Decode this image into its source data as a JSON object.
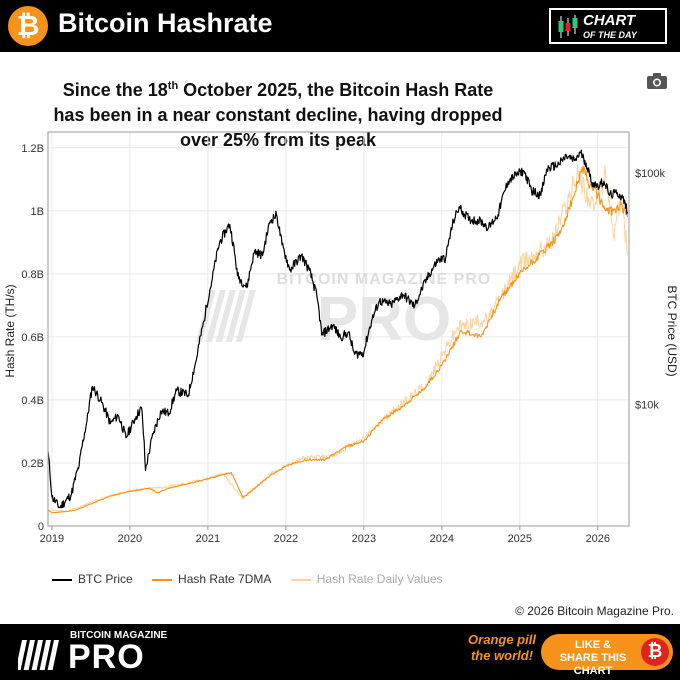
{
  "header": {
    "title": "Bitcoin Hashrate",
    "logo_glyph": "₿",
    "badge_line1": "CHART",
    "badge_line2": "OF THE DAY"
  },
  "headline": {
    "part1": "Since the 18",
    "sup": "th",
    "part2": " October 2025, the Bitcoin Hash Rate has been in a near constant decline, having dropped over 25% from its peak"
  },
  "footer": {
    "copyright": "© 2026 Bitcoin Magazine Pro.",
    "brand_small": "BITCOIN MAGAZINE",
    "brand_big": "PRO",
    "tagline": "Orange pill the world!",
    "share_label": "LIKE & SHARE THIS CHART",
    "coin_glyph": "₿"
  },
  "colors": {
    "btc_price": "#000000",
    "hash_rate_7dma": "#f7931a",
    "hash_rate_daily": "#f9d3a0"
  },
  "chart_data": {
    "type": "line",
    "watermark": "BITCOIN MAGAZINE PRO",
    "y_left_label": "Hash Rate (TH/s)",
    "y_right_label": "BTC Price (USD)",
    "y_left_ticks": [
      "0",
      "0.2B",
      "0.4B",
      "0.6B",
      "0.8B",
      "1B",
      "1.2B"
    ],
    "y_left_range": [
      0,
      1.25
    ],
    "y_right_ticks": [
      "$10k",
      "$100k"
    ],
    "y_right_scale": "log",
    "y_right_range": [
      3000,
      150000
    ],
    "x_ticks": [
      "2019",
      "2020",
      "2021",
      "2022",
      "2023",
      "2024",
      "2025",
      "2026"
    ],
    "x_range": [
      2018.95,
      2026.4
    ],
    "grid": true,
    "legend": [
      {
        "name": "BTC Price",
        "color": "#000000"
      },
      {
        "name": "Hash Rate 7DMA",
        "color": "#f7931a"
      },
      {
        "name": "Hash Rate Daily Values",
        "color": "#f9d3a0"
      }
    ],
    "series": [
      {
        "name": "BTC Price",
        "axis": "right",
        "points": [
          [
            2018.95,
            6300
          ],
          [
            2019.0,
            4000
          ],
          [
            2019.1,
            3600
          ],
          [
            2019.25,
            4100
          ],
          [
            2019.35,
            5500
          ],
          [
            2019.45,
            8500
          ],
          [
            2019.52,
            12000
          ],
          [
            2019.62,
            10500
          ],
          [
            2019.75,
            8300
          ],
          [
            2019.85,
            9000
          ],
          [
            2019.95,
            7200
          ],
          [
            2020.08,
            8900
          ],
          [
            2020.15,
            9700
          ],
          [
            2020.2,
            5200
          ],
          [
            2020.3,
            7500
          ],
          [
            2020.4,
            9400
          ],
          [
            2020.5,
            9200
          ],
          [
            2020.6,
            11500
          ],
          [
            2020.75,
            11000
          ],
          [
            2020.85,
            15500
          ],
          [
            2020.95,
            23000
          ],
          [
            2021.05,
            34000
          ],
          [
            2021.15,
            50000
          ],
          [
            2021.28,
            60000
          ],
          [
            2021.38,
            36000
          ],
          [
            2021.5,
            32000
          ],
          [
            2021.6,
            46000
          ],
          [
            2021.7,
            44000
          ],
          [
            2021.8,
            62000
          ],
          [
            2021.88,
            66000
          ],
          [
            2021.95,
            49000
          ],
          [
            2022.05,
            38000
          ],
          [
            2022.2,
            44000
          ],
          [
            2022.3,
            38000
          ],
          [
            2022.4,
            29000
          ],
          [
            2022.46,
            20000
          ],
          [
            2022.6,
            22000
          ],
          [
            2022.7,
            19500
          ],
          [
            2022.8,
            20500
          ],
          [
            2022.88,
            16500
          ],
          [
            2023.0,
            16800
          ],
          [
            2023.1,
            23000
          ],
          [
            2023.2,
            28000
          ],
          [
            2023.35,
            27000
          ],
          [
            2023.5,
            30000
          ],
          [
            2023.65,
            26500
          ],
          [
            2023.8,
            34500
          ],
          [
            2023.95,
            42000
          ],
          [
            2024.05,
            43000
          ],
          [
            2024.15,
            62000
          ],
          [
            2024.22,
            71000
          ],
          [
            2024.35,
            63000
          ],
          [
            2024.5,
            62000
          ],
          [
            2024.6,
            58000
          ],
          [
            2024.72,
            66000
          ],
          [
            2024.85,
            92000
          ],
          [
            2024.95,
            98000
          ],
          [
            2025.05,
            102000
          ],
          [
            2025.15,
            84000
          ],
          [
            2025.27,
            80000
          ],
          [
            2025.35,
            104000
          ],
          [
            2025.5,
            109000
          ],
          [
            2025.6,
            118000
          ],
          [
            2025.7,
            113000
          ],
          [
            2025.78,
            122000
          ],
          [
            2025.85,
            110000
          ],
          [
            2025.92,
            91000
          ],
          [
            2026.0,
            88000
          ],
          [
            2026.08,
            92000
          ],
          [
            2026.15,
            80000
          ],
          [
            2026.25,
            82000
          ],
          [
            2026.32,
            78000
          ],
          [
            2026.38,
            68000
          ]
        ]
      },
      {
        "name": "Hash Rate 7DMA",
        "axis": "left",
        "points": [
          [
            2018.95,
            0.05
          ],
          [
            2019.0,
            0.042
          ],
          [
            2019.15,
            0.045
          ],
          [
            2019.3,
            0.05
          ],
          [
            2019.5,
            0.07
          ],
          [
            2019.75,
            0.095
          ],
          [
            2020.0,
            0.11
          ],
          [
            2020.25,
            0.12
          ],
          [
            2020.35,
            0.105
          ],
          [
            2020.5,
            0.12
          ],
          [
            2020.75,
            0.135
          ],
          [
            2021.0,
            0.15
          ],
          [
            2021.3,
            0.17
          ],
          [
            2021.45,
            0.09
          ],
          [
            2021.6,
            0.12
          ],
          [
            2021.8,
            0.16
          ],
          [
            2022.0,
            0.19
          ],
          [
            2022.25,
            0.21
          ],
          [
            2022.5,
            0.21
          ],
          [
            2022.75,
            0.25
          ],
          [
            2023.0,
            0.27
          ],
          [
            2023.25,
            0.34
          ],
          [
            2023.5,
            0.38
          ],
          [
            2023.75,
            0.43
          ],
          [
            2024.0,
            0.51
          ],
          [
            2024.25,
            0.62
          ],
          [
            2024.5,
            0.6
          ],
          [
            2024.75,
            0.72
          ],
          [
            2025.0,
            0.8
          ],
          [
            2025.25,
            0.86
          ],
          [
            2025.5,
            0.92
          ],
          [
            2025.7,
            1.05
          ],
          [
            2025.8,
            1.14
          ],
          [
            2025.9,
            1.08
          ],
          [
            2026.0,
            1.05
          ],
          [
            2026.1,
            1.0
          ],
          [
            2026.2,
            1.0
          ],
          [
            2026.3,
            1.02
          ],
          [
            2026.38,
            0.98
          ]
        ]
      },
      {
        "name": "Hash Rate Daily Values",
        "axis": "left",
        "points": [
          [
            2018.95,
            0.05
          ],
          [
            2019.2,
            0.046
          ],
          [
            2019.5,
            0.075
          ],
          [
            2019.8,
            0.1
          ],
          [
            2020.1,
            0.115
          ],
          [
            2020.5,
            0.125
          ],
          [
            2020.9,
            0.145
          ],
          [
            2021.2,
            0.165
          ],
          [
            2021.45,
            0.085
          ],
          [
            2021.8,
            0.165
          ],
          [
            2022.2,
            0.215
          ],
          [
            2022.6,
            0.22
          ],
          [
            2023.0,
            0.28
          ],
          [
            2023.4,
            0.37
          ],
          [
            2023.8,
            0.45
          ],
          [
            2024.2,
            0.63
          ],
          [
            2024.6,
            0.66
          ],
          [
            2025.0,
            0.83
          ],
          [
            2025.4,
            0.9
          ],
          [
            2025.75,
            1.12
          ],
          [
            2025.95,
            1.0
          ],
          [
            2026.1,
            1.12
          ],
          [
            2026.2,
            0.92
          ],
          [
            2026.3,
            1.05
          ],
          [
            2026.38,
            0.86
          ]
        ]
      }
    ]
  }
}
